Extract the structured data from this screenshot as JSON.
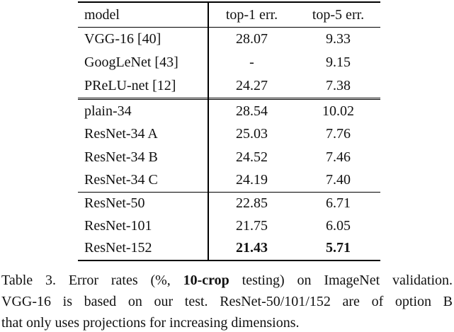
{
  "table": {
    "header": {
      "model": "model",
      "top1": "top-1 err.",
      "top5": "top-5 err."
    },
    "sections": [
      {
        "rows": [
          {
            "model": "VGG-16 [40]",
            "top1": "28.07",
            "top5": "9.33"
          },
          {
            "model": "GoogLeNet [43]",
            "top1": "-",
            "top5": "9.15"
          },
          {
            "model": "PReLU-net [12]",
            "top1": "24.27",
            "top5": "7.38"
          }
        ]
      },
      {
        "rows": [
          {
            "model": "plain-34",
            "top1": "28.54",
            "top5": "10.02"
          },
          {
            "model": "ResNet-34 A",
            "top1": "25.03",
            "top5": "7.76"
          },
          {
            "model": "ResNet-34 B",
            "top1": "24.52",
            "top5": "7.46"
          },
          {
            "model": "ResNet-34 C",
            "top1": "24.19",
            "top5": "7.40"
          }
        ]
      },
      {
        "rows": [
          {
            "model": "ResNet-50",
            "top1": "22.85",
            "top5": "6.71"
          },
          {
            "model": "ResNet-101",
            "top1": "21.75",
            "top5": "6.05"
          },
          {
            "model": "ResNet-152",
            "top1": "21.43",
            "top5": "5.71"
          }
        ]
      }
    ]
  },
  "caption": {
    "line1_pre": "Table 3. Error rates (%, ",
    "line1_bold": "10-crop",
    "line1_post": " testing) on ImageNet validation.",
    "line2": "VGG-16 is based on our test. ResNet-50/101/152 are of option B",
    "line3": "that only uses projections for increasing dimensions."
  },
  "colors": {
    "text": "#111111",
    "rule": "#000000",
    "background": "#ffffff"
  }
}
